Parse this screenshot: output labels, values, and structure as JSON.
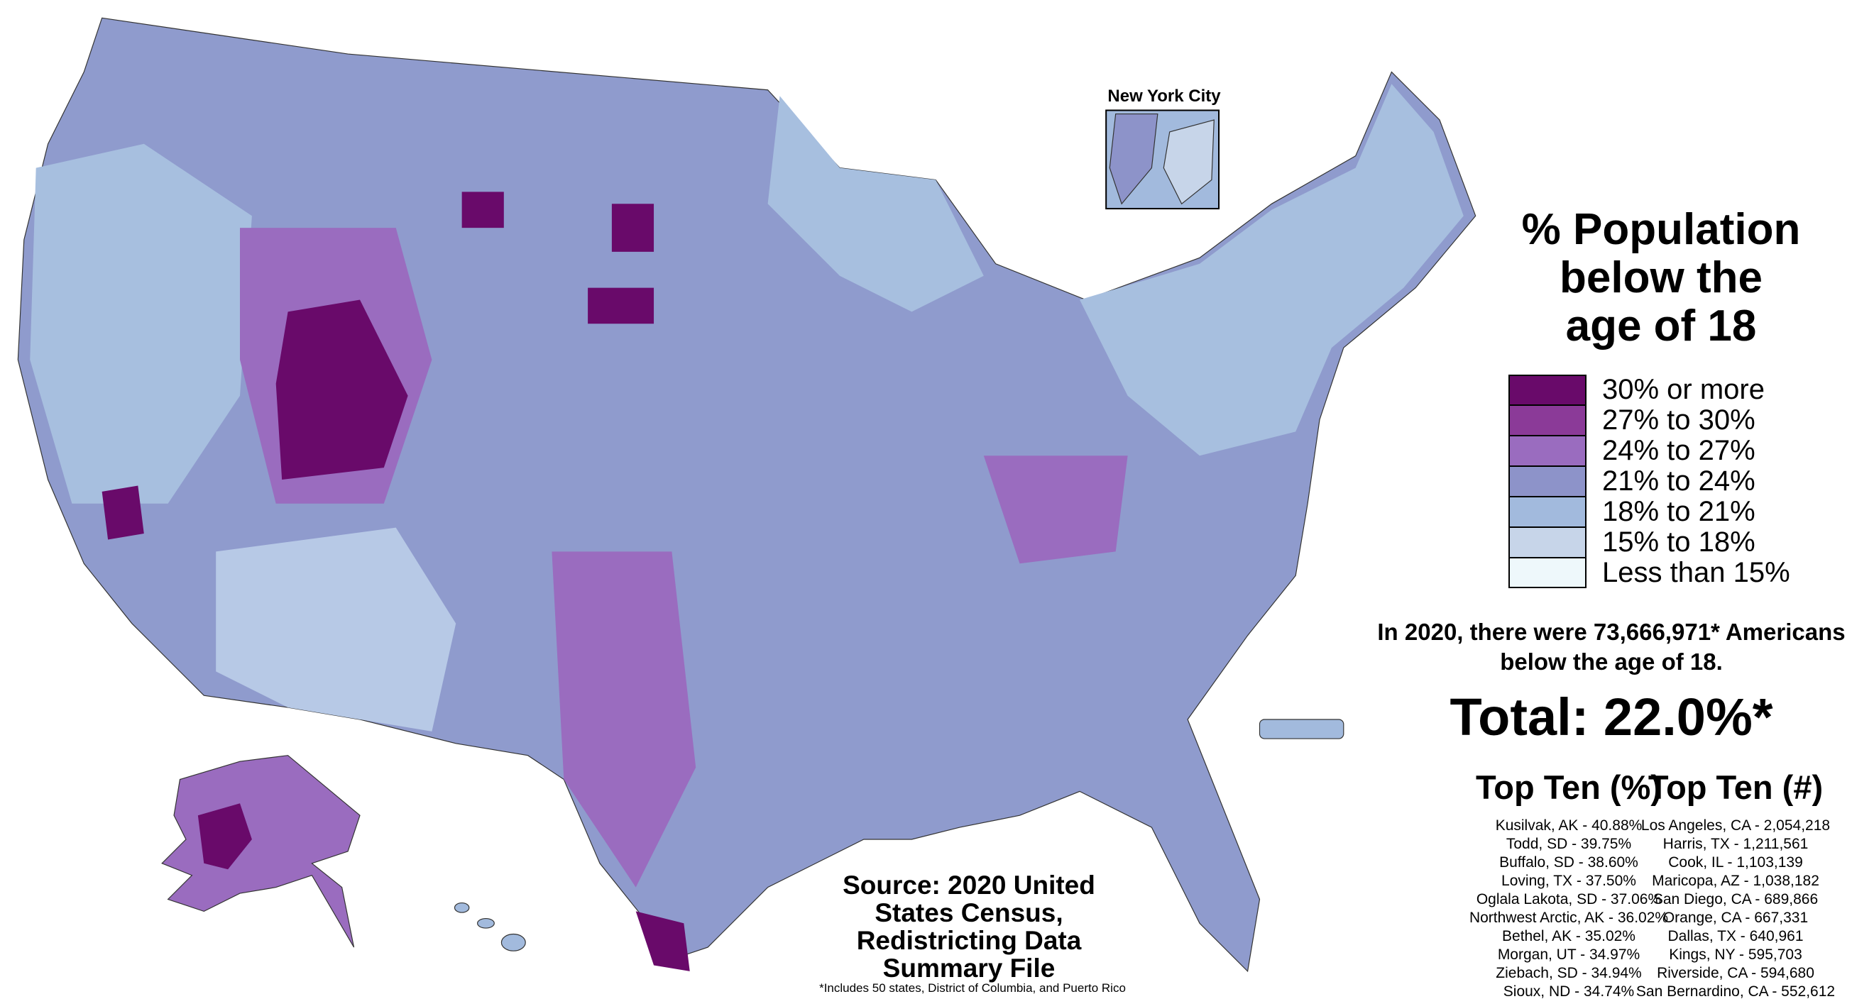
{
  "map": {
    "title": "% Population below the age of 18",
    "inset_label": "New York City",
    "legend": {
      "items": [
        {
          "label": "30% or more",
          "color": "#690a6a"
        },
        {
          "label": "27% to 30%",
          "color": "#8b3a98"
        },
        {
          "label": "24% to 27%",
          "color": "#9a6cbf"
        },
        {
          "label": "21% to 24%",
          "color": "#8d93c9"
        },
        {
          "label": "18% to 21%",
          "color": "#a2badd"
        },
        {
          "label": "15% to 18%",
          "color": "#c7d5e9"
        },
        {
          "label": "Less than 15%",
          "color": "#eef8fb"
        }
      ]
    },
    "summary": "In 2020, there were 73,666,971* Americans below the age of 18.",
    "total": "Total: 22.0%*",
    "top_ten_percent": {
      "heading": "Top Ten (%)",
      "entries": [
        "Kusilvak, AK - 40.88%",
        "Todd, SD - 39.75%",
        "Buffalo, SD - 38.60%",
        "Loving, TX - 37.50%",
        "Oglala Lakota, SD - 37.06%",
        "Northwest Arctic, AK - 36.02%",
        "Bethel, AK - 35.02%",
        "Morgan, UT - 34.97%",
        "Ziebach, SD - 34.94%",
        "Sioux, ND - 34.74%"
      ]
    },
    "top_ten_count": {
      "heading": "Top Ten (#)",
      "entries": [
        "Los Angeles, CA - 2,054,218",
        "Harris, TX - 1,211,561",
        "Cook, IL - 1,103,139",
        "Maricopa, AZ - 1,038,182",
        "San Diego, CA - 689,866",
        "Orange, CA - 667,331",
        "Dallas, TX - 640,961",
        "Kings, NY - 595,703",
        "Riverside, CA - 594,680",
        "San Bernardino, CA - 552,612"
      ]
    },
    "source": "Source: 2020 United States Census, Redistricting Data Summary File",
    "footnote": "*Includes 50 states, District of Columbia, and Puerto Rico"
  }
}
